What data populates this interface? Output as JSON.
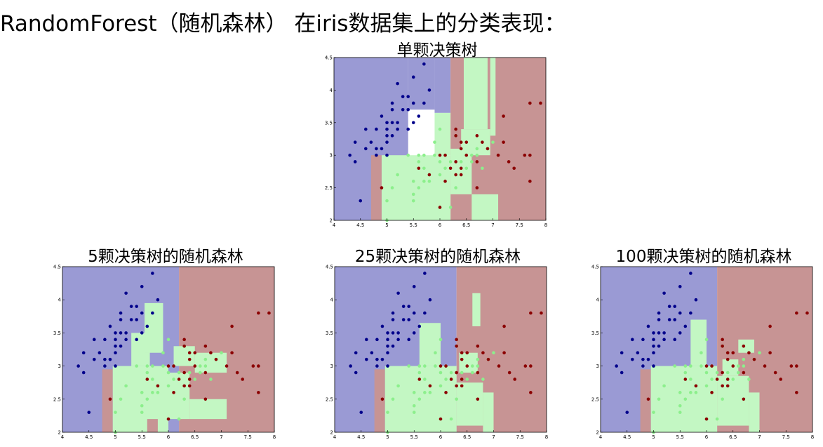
{
  "heading": "RandomForest（随机森林） 在iris数据集上的分类表现：",
  "colors": {
    "region_class0": "#9a9ad4",
    "region_class1": "#c3f7c3",
    "region_class2": "#c79494",
    "point_class0": "#00008b",
    "point_class1": "#8cef8c",
    "point_class2": "#8b0000"
  },
  "chart_data": [
    {
      "type": "scatter",
      "title": "单颗决策树",
      "xlabel": "",
      "ylabel": "",
      "xlim": [
        4,
        8
      ],
      "ylim": [
        2,
        4.5
      ],
      "xticks": [
        "4",
        "4.5",
        "5",
        "5.5",
        "6",
        "6.5",
        "7",
        "7.5",
        "8"
      ],
      "yticks": [
        "2",
        "2.5",
        "3",
        "3.5",
        "4",
        "4.5"
      ],
      "regions": [
        {
          "class": 0,
          "x": [
            4.0,
            5.4
          ],
          "y": [
            2.0,
            4.5
          ]
        },
        {
          "class": 0,
          "x": [
            5.4,
            5.9
          ],
          "y": [
            3.7,
            4.5
          ]
        },
        {
          "class": 0,
          "x": [
            5.9,
            6.2
          ],
          "y": [
            3.65,
            4.5
          ]
        },
        {
          "class": 2,
          "x": [
            6.2,
            8.0
          ],
          "y": [
            2.0,
            4.5
          ]
        },
        {
          "class": 2,
          "x": [
            4.7,
            4.9
          ],
          "y": [
            2.0,
            3.0
          ]
        },
        {
          "class": 1,
          "x": [
            4.9,
            6.2
          ],
          "y": [
            2.0,
            3.0
          ]
        },
        {
          "class": 1,
          "x": [
            5.9,
            6.2
          ],
          "y": [
            3.0,
            3.65
          ]
        },
        {
          "class": 1,
          "x": [
            6.2,
            6.6
          ],
          "y": [
            2.4,
            3.1
          ]
        },
        {
          "class": 1,
          "x": [
            6.6,
            7.1
          ],
          "y": [
            2.0,
            2.4
          ]
        },
        {
          "class": 1,
          "x": [
            6.4,
            6.95
          ],
          "y": [
            3.0,
            3.4
          ]
        },
        {
          "class": 1,
          "x": [
            6.45,
            6.9
          ],
          "y": [
            3.4,
            4.5
          ]
        },
        {
          "class": 1,
          "x": [
            6.95,
            7.05
          ],
          "y": [
            3.3,
            4.5
          ]
        }
      ]
    },
    {
      "type": "scatter",
      "title": "5颗决策树的随机森林",
      "xlabel": "",
      "ylabel": "",
      "xlim": [
        4,
        8
      ],
      "ylim": [
        2,
        4.5
      ],
      "xticks": [
        "4",
        "4.5",
        "5",
        "5.5",
        "6",
        "6.5",
        "7",
        "7.5",
        "8"
      ],
      "yticks": [
        "2",
        "2.5",
        "3",
        "3.5",
        "4",
        "4.5"
      ],
      "regions": [
        {
          "class": 0,
          "x": [
            4.0,
            6.2
          ],
          "y": [
            2.0,
            4.5
          ]
        },
        {
          "class": 2,
          "x": [
            6.2,
            8.0
          ],
          "y": [
            2.0,
            4.5
          ]
        },
        {
          "class": 2,
          "x": [
            4.75,
            4.95
          ],
          "y": [
            2.0,
            2.95
          ]
        },
        {
          "class": 1,
          "x": [
            4.95,
            6.0
          ],
          "y": [
            2.0,
            3.0
          ]
        },
        {
          "class": 1,
          "x": [
            5.3,
            5.65
          ],
          "y": [
            3.0,
            3.5
          ]
        },
        {
          "class": 1,
          "x": [
            5.55,
            5.9
          ],
          "y": [
            3.2,
            3.95
          ]
        },
        {
          "class": 1,
          "x": [
            6.0,
            6.4
          ],
          "y": [
            2.2,
            2.9
          ]
        },
        {
          "class": 1,
          "x": [
            6.4,
            7.1
          ],
          "y": [
            2.2,
            2.5
          ]
        },
        {
          "class": 1,
          "x": [
            6.1,
            6.5
          ],
          "y": [
            3.0,
            3.3
          ]
        },
        {
          "class": 1,
          "x": [
            6.5,
            7.1
          ],
          "y": [
            2.9,
            3.2
          ]
        },
        {
          "class": 2,
          "x": [
            5.6,
            5.8
          ],
          "y": [
            2.0,
            2.2
          ]
        }
      ]
    },
    {
      "type": "scatter",
      "title": "25颗决策树的随机森林",
      "xlabel": "",
      "ylabel": "",
      "xlim": [
        4,
        8
      ],
      "ylim": [
        2,
        4.5
      ],
      "xticks": [
        "4",
        "4.5",
        "5",
        "5.5",
        "6",
        "6.5",
        "7",
        "7.5",
        "8"
      ],
      "yticks": [
        "2",
        "2.5",
        "3",
        "3.5",
        "4",
        "4.5"
      ],
      "regions": [
        {
          "class": 0,
          "x": [
            4.0,
            6.3
          ],
          "y": [
            2.0,
            4.5
          ]
        },
        {
          "class": 2,
          "x": [
            6.3,
            8.0
          ],
          "y": [
            2.0,
            4.5
          ]
        },
        {
          "class": 2,
          "x": [
            4.75,
            4.95
          ],
          "y": [
            2.0,
            2.95
          ]
        },
        {
          "class": 1,
          "x": [
            4.95,
            6.3
          ],
          "y": [
            2.0,
            3.0
          ]
        },
        {
          "class": 1,
          "x": [
            5.6,
            6.0
          ],
          "y": [
            3.0,
            3.65
          ]
        },
        {
          "class": 1,
          "x": [
            6.3,
            6.8
          ],
          "y": [
            2.1,
            2.75
          ]
        },
        {
          "class": 1,
          "x": [
            6.8,
            7.0
          ],
          "y": [
            2.0,
            2.6
          ]
        },
        {
          "class": 1,
          "x": [
            6.35,
            6.7
          ],
          "y": [
            2.9,
            3.2
          ]
        },
        {
          "class": 1,
          "x": [
            6.6,
            6.75
          ],
          "y": [
            3.6,
            4.1
          ]
        }
      ]
    },
    {
      "type": "scatter",
      "title": "100颗决策树的随机森林",
      "xlabel": "",
      "ylabel": "",
      "xlim": [
        4,
        8
      ],
      "ylim": [
        2,
        4.5
      ],
      "xticks": [
        "4",
        "4.5",
        "5",
        "5.5",
        "6",
        "6.5",
        "7",
        "7.5",
        "8"
      ],
      "yticks": [
        "2",
        "2.5",
        "3",
        "3.5",
        "4",
        "4.5"
      ],
      "regions": [
        {
          "class": 0,
          "x": [
            4.0,
            6.2
          ],
          "y": [
            2.0,
            4.5
          ]
        },
        {
          "class": 2,
          "x": [
            6.2,
            8.0
          ],
          "y": [
            2.0,
            4.5
          ]
        },
        {
          "class": 2,
          "x": [
            4.75,
            4.95
          ],
          "y": [
            2.0,
            2.95
          ]
        },
        {
          "class": 1,
          "x": [
            4.95,
            6.2
          ],
          "y": [
            2.0,
            3.0
          ]
        },
        {
          "class": 1,
          "x": [
            5.7,
            6.0
          ],
          "y": [
            3.0,
            3.7
          ]
        },
        {
          "class": 1,
          "x": [
            6.2,
            6.8
          ],
          "y": [
            2.1,
            2.85
          ]
        },
        {
          "class": 1,
          "x": [
            6.8,
            7.0
          ],
          "y": [
            2.0,
            2.6
          ]
        },
        {
          "class": 1,
          "x": [
            6.3,
            6.6
          ],
          "y": [
            2.85,
            3.1
          ]
        },
        {
          "class": 1,
          "x": [
            6.6,
            6.9
          ],
          "y": [
            3.2,
            3.4
          ]
        }
      ]
    }
  ],
  "points": {
    "class0": [
      [
        4.3,
        3.0
      ],
      [
        4.4,
        2.9
      ],
      [
        4.4,
        3.2
      ],
      [
        4.5,
        2.3
      ],
      [
        4.6,
        3.1
      ],
      [
        4.6,
        3.4
      ],
      [
        4.7,
        3.2
      ],
      [
        4.8,
        3.4
      ],
      [
        4.8,
        3.0
      ],
      [
        4.8,
        3.1
      ],
      [
        4.9,
        3.1
      ],
      [
        4.9,
        3.6
      ],
      [
        5.0,
        3.3
      ],
      [
        5.0,
        3.5
      ],
      [
        5.0,
        3.0
      ],
      [
        5.0,
        3.4
      ],
      [
        5.0,
        3.2
      ],
      [
        5.1,
        3.5
      ],
      [
        5.1,
        3.8
      ],
      [
        5.1,
        3.3
      ],
      [
        5.1,
        3.7
      ],
      [
        5.2,
        4.1
      ],
      [
        5.2,
        3.4
      ],
      [
        5.2,
        3.5
      ],
      [
        5.3,
        3.7
      ],
      [
        5.4,
        3.9
      ],
      [
        5.4,
        3.4
      ],
      [
        5.4,
        3.7
      ],
      [
        5.5,
        4.2
      ],
      [
        5.5,
        3.5
      ],
      [
        5.7,
        3.8
      ],
      [
        5.7,
        4.4
      ],
      [
        5.8,
        4.0
      ],
      [
        5.5,
        3.8
      ],
      [
        5.3,
        3.9
      ],
      [
        5.6,
        3.6
      ]
    ],
    "class1": [
      [
        5.0,
        2.0
      ],
      [
        5.0,
        2.3
      ],
      [
        5.1,
        2.5
      ],
      [
        5.2,
        2.7
      ],
      [
        5.5,
        2.3
      ],
      [
        5.5,
        2.4
      ],
      [
        5.5,
        2.6
      ],
      [
        5.6,
        2.9
      ],
      [
        5.6,
        3.0
      ],
      [
        5.6,
        2.5
      ],
      [
        5.7,
        2.8
      ],
      [
        5.7,
        2.6
      ],
      [
        5.7,
        3.0
      ],
      [
        5.8,
        2.7
      ],
      [
        5.8,
        2.6
      ],
      [
        5.9,
        3.0
      ],
      [
        5.9,
        3.2
      ],
      [
        6.0,
        2.2
      ],
      [
        6.0,
        2.9
      ],
      [
        6.0,
        3.4
      ],
      [
        6.0,
        2.7
      ],
      [
        6.1,
        2.8
      ],
      [
        6.1,
        3.0
      ],
      [
        6.2,
        2.2
      ],
      [
        6.2,
        2.9
      ],
      [
        6.3,
        2.5
      ],
      [
        6.3,
        3.3
      ],
      [
        6.4,
        2.9
      ],
      [
        6.5,
        2.8
      ],
      [
        6.6,
        2.9
      ],
      [
        6.6,
        3.0
      ],
      [
        6.7,
        3.1
      ],
      [
        6.7,
        3.0
      ],
      [
        6.8,
        2.8
      ],
      [
        6.9,
        3.1
      ],
      [
        7.0,
        3.2
      ],
      [
        5.4,
        3.0
      ],
      [
        6.4,
        3.2
      ]
    ],
    "class2": [
      [
        4.9,
        2.5
      ],
      [
        5.6,
        2.8
      ],
      [
        5.8,
        2.7
      ],
      [
        6.0,
        2.2
      ],
      [
        6.1,
        2.6
      ],
      [
        6.1,
        3.0
      ],
      [
        6.2,
        2.8
      ],
      [
        6.3,
        2.9
      ],
      [
        6.3,
        3.3
      ],
      [
        6.3,
        2.7
      ],
      [
        6.3,
        3.4
      ],
      [
        6.4,
        2.8
      ],
      [
        6.4,
        3.1
      ],
      [
        6.4,
        3.2
      ],
      [
        6.5,
        3.0
      ],
      [
        6.5,
        3.2
      ],
      [
        6.7,
        2.5
      ],
      [
        6.7,
        3.3
      ],
      [
        6.8,
        3.2
      ],
      [
        6.9,
        3.1
      ],
      [
        7.1,
        3.0
      ],
      [
        7.2,
        3.6
      ],
      [
        7.2,
        3.2
      ],
      [
        7.3,
        2.9
      ],
      [
        7.4,
        2.8
      ],
      [
        7.6,
        3.0
      ],
      [
        7.7,
        3.8
      ],
      [
        7.7,
        2.6
      ],
      [
        7.7,
        3.0
      ],
      [
        7.9,
        3.8
      ],
      [
        6.4,
        2.7
      ],
      [
        6.0,
        3.0
      ],
      [
        6.7,
        2.9
      ]
    ]
  }
}
